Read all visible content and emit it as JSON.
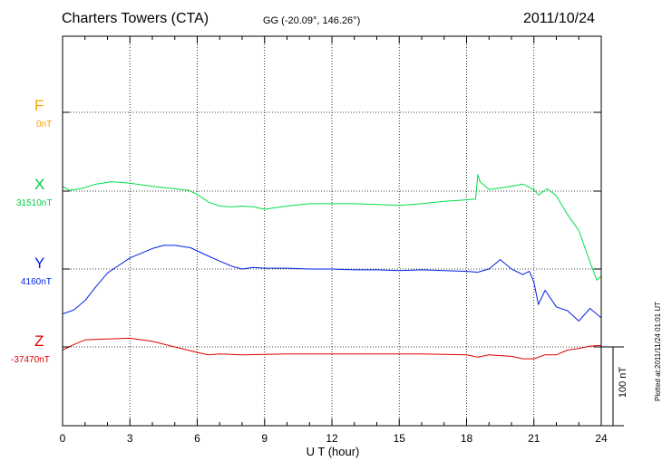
{
  "header": {
    "station": "Charters Towers (CTA)",
    "coords": "GG (-20.09°, 146.26°)",
    "date": "2011/10/24"
  },
  "footer": {
    "stamp": "Plotted at:2011/11/24 01:01 UT"
  },
  "chart_data": {
    "type": "line",
    "title": "Charters Towers (CTA)",
    "subtitle": "GG (-20.09°, 146.26°)",
    "date": "2011/10/24",
    "xlabel": "U T (hour)",
    "xlim": [
      0,
      24
    ],
    "xticks": [
      0,
      3,
      6,
      9,
      12,
      15,
      18,
      21,
      24
    ],
    "x_tick_labels": [
      "0",
      "3",
      "6",
      "9",
      "12",
      "15",
      "18",
      "21",
      "24"
    ],
    "grid": true,
    "scale_bar": {
      "label": "100 nT",
      "nT": 100
    },
    "components": [
      {
        "name": "F",
        "baseline": "0nT",
        "color": "#f5a500",
        "points": []
      },
      {
        "name": "X",
        "baseline": "31510nT",
        "color": "#00e040",
        "points": [
          [
            0,
            6
          ],
          [
            0.3,
            1
          ],
          [
            0.8,
            3
          ],
          [
            1.5,
            9
          ],
          [
            2.2,
            12
          ],
          [
            3.0,
            10
          ],
          [
            4.0,
            6
          ],
          [
            5.0,
            3
          ],
          [
            5.6,
            1
          ],
          [
            6.0,
            -4
          ],
          [
            6.5,
            -14
          ],
          [
            7.0,
            -19
          ],
          [
            7.5,
            -20
          ],
          [
            8.0,
            -19
          ],
          [
            8.5,
            -20
          ],
          [
            9.0,
            -23
          ],
          [
            10.0,
            -19
          ],
          [
            11.0,
            -16
          ],
          [
            12.0,
            -16
          ],
          [
            13.0,
            -16
          ],
          [
            14.0,
            -17
          ],
          [
            15.0,
            -18
          ],
          [
            16.0,
            -16
          ],
          [
            17.0,
            -13
          ],
          [
            18.0,
            -11
          ],
          [
            18.4,
            -10
          ],
          [
            18.5,
            21
          ],
          [
            18.6,
            12
          ],
          [
            19.0,
            2
          ],
          [
            19.5,
            4
          ],
          [
            20.0,
            6
          ],
          [
            20.5,
            9
          ],
          [
            21.0,
            2
          ],
          [
            21.2,
            -5
          ],
          [
            21.6,
            3
          ],
          [
            22.0,
            -6
          ],
          [
            22.5,
            -30
          ],
          [
            23.0,
            -50
          ],
          [
            23.5,
            -90
          ],
          [
            23.8,
            -113
          ],
          [
            24.0,
            -108
          ]
        ]
      },
      {
        "name": "Y",
        "baseline": "4160nT",
        "color": "#0020e0",
        "points": [
          [
            0,
            -57
          ],
          [
            0.5,
            -52
          ],
          [
            1.0,
            -40
          ],
          [
            1.5,
            -22
          ],
          [
            2.0,
            -5
          ],
          [
            3.0,
            14
          ],
          [
            4.0,
            26
          ],
          [
            4.5,
            30
          ],
          [
            5.0,
            30
          ],
          [
            5.7,
            27
          ],
          [
            6.3,
            19
          ],
          [
            7.0,
            10
          ],
          [
            7.6,
            3
          ],
          [
            8.0,
            0
          ],
          [
            8.5,
            2
          ],
          [
            9.0,
            1
          ],
          [
            10.0,
            1
          ],
          [
            11.0,
            0
          ],
          [
            12.0,
            0
          ],
          [
            13.0,
            -1
          ],
          [
            14.0,
            -1
          ],
          [
            15.0,
            -2
          ],
          [
            16.0,
            -1
          ],
          [
            17.0,
            -2
          ],
          [
            18.0,
            -3
          ],
          [
            18.5,
            -4
          ],
          [
            19.0,
            0
          ],
          [
            19.5,
            12
          ],
          [
            20.0,
            0
          ],
          [
            20.5,
            -7
          ],
          [
            20.8,
            -3
          ],
          [
            21.0,
            -17
          ],
          [
            21.2,
            -45
          ],
          [
            21.5,
            -27
          ],
          [
            22.0,
            -48
          ],
          [
            22.5,
            -53
          ],
          [
            23.0,
            -66
          ],
          [
            23.5,
            -50
          ],
          [
            24.0,
            -62
          ]
        ]
      },
      {
        "name": "Z",
        "baseline": "-37470nT",
        "color": "#e00000",
        "points": [
          [
            0,
            -4
          ],
          [
            0.5,
            3
          ],
          [
            1.0,
            9
          ],
          [
            2.0,
            10
          ],
          [
            3.0,
            11
          ],
          [
            4.0,
            7
          ],
          [
            5.0,
            0
          ],
          [
            6.0,
            -7
          ],
          [
            6.5,
            -10
          ],
          [
            7.0,
            -9
          ],
          [
            8.0,
            -10
          ],
          [
            10.0,
            -9
          ],
          [
            12.0,
            -9
          ],
          [
            14.0,
            -9
          ],
          [
            16.0,
            -9
          ],
          [
            18.0,
            -10
          ],
          [
            18.5,
            -13
          ],
          [
            19.0,
            -10
          ],
          [
            20.0,
            -12
          ],
          [
            20.5,
            -15
          ],
          [
            21.0,
            -15
          ],
          [
            21.5,
            -10
          ],
          [
            22.0,
            -10
          ],
          [
            22.5,
            -4
          ],
          [
            23.0,
            -2
          ],
          [
            23.5,
            1
          ],
          [
            24.0,
            2
          ]
        ]
      }
    ]
  }
}
